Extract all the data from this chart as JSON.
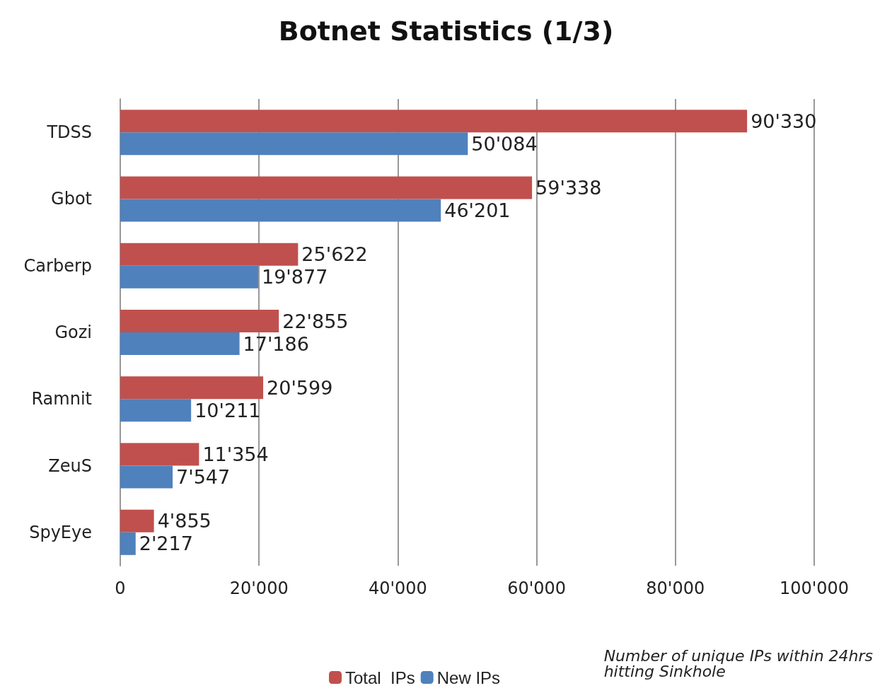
{
  "chart_data": {
    "type": "bar",
    "title": "Botnet Statistics (1/3)",
    "orientation": "horizontal",
    "categories": [
      "TDSS",
      "Gbot",
      "Carberp",
      "Gozi",
      "Ramnit",
      "ZeuS",
      "SpyEye"
    ],
    "series": [
      {
        "name": "Total  IPs",
        "color": "#c0504d",
        "values": [
          90330,
          59338,
          25622,
          22855,
          20599,
          11354,
          4855
        ],
        "value_labels": [
          "90'330",
          "59'338",
          "25'622",
          "22'855",
          "20'599",
          "11'354",
          "4'855"
        ]
      },
      {
        "name": "New IPs",
        "color": "#4f81bd",
        "values": [
          50084,
          46201,
          19877,
          17186,
          10211,
          7547,
          2217
        ],
        "value_labels": [
          "50'084",
          "46'201",
          "19'877",
          "17'186",
          "10'211",
          "7'547",
          "2'217"
        ]
      }
    ],
    "xlim": [
      0,
      100000
    ],
    "xticks": [
      0,
      {
        "value": 20000,
        "label": "20'000"
      },
      {
        "value": 40000,
        "label": "40'000"
      },
      {
        "value": 60000,
        "label": "60'000"
      },
      {
        "value": 80000,
        "label": "80'000"
      },
      {
        "value": 100000,
        "label": "100'000"
      }
    ],
    "grid": "x",
    "legend": "bottom",
    "annotations": [
      "Number of unique IPs within 24hrs hitting Sinkhole"
    ]
  }
}
